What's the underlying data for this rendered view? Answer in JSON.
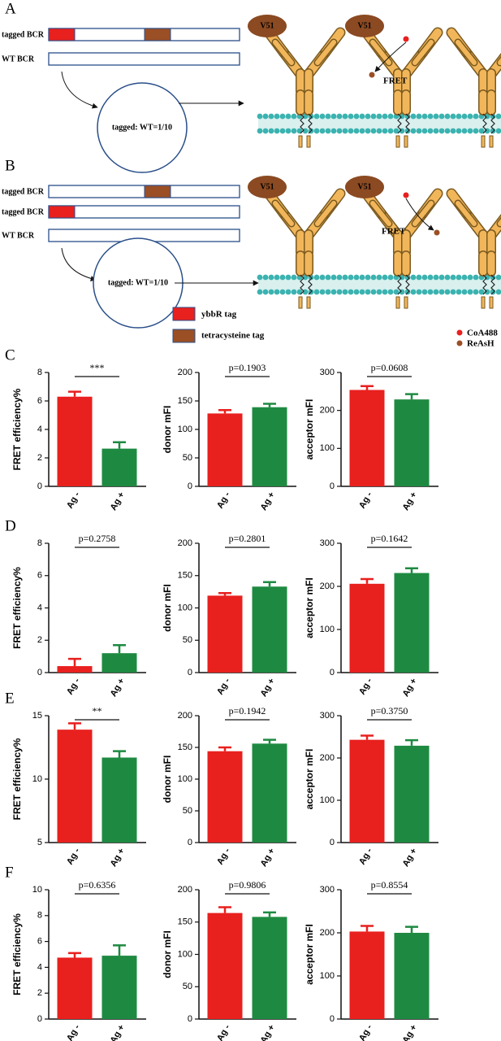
{
  "diagrams": {
    "A": {
      "label": "A",
      "rows": [
        "tagged BCR",
        "WT BCR"
      ],
      "ratio": "tagged: WT=1/10",
      "antibody": "V51",
      "fret": "FRET"
    },
    "B": {
      "label": "B",
      "rows": [
        "tagged BCR",
        "tagged BCR",
        "WT BCR"
      ],
      "ratio": "tagged: WT=1/10",
      "antibody": "V51",
      "fret": "FRET",
      "legend": [
        "ybbR tag",
        "tetracysteine tag"
      ],
      "dyes": [
        "CoA488",
        "ReAsH"
      ]
    }
  },
  "chart_data": [
    {
      "type": "bar",
      "panel": "C",
      "ylabel": "FRET efficiency%",
      "categories": [
        "Ag -",
        "Ag +"
      ],
      "values": [
        6.3,
        2.65
      ],
      "errors": [
        0.35,
        0.45
      ],
      "colors": [
        "#e8201e",
        "#1e8a41"
      ],
      "annotation": "***",
      "ylim": [
        0,
        8
      ],
      "yticks": [
        0,
        2,
        4,
        6,
        8
      ]
    },
    {
      "type": "bar",
      "ylabel": "donor mFI",
      "categories": [
        "Ag -",
        "Ag +"
      ],
      "values": [
        128,
        139
      ],
      "errors": [
        6,
        6
      ],
      "colors": [
        "#e8201e",
        "#1e8a41"
      ],
      "annotation": "p=0.1903",
      "ylim": [
        0,
        200
      ],
      "yticks": [
        0,
        50,
        100,
        150,
        200
      ]
    },
    {
      "type": "bar",
      "ylabel": "acceptor mFI",
      "categories": [
        "Ag -",
        "Ag +"
      ],
      "values": [
        254,
        229
      ],
      "errors": [
        10,
        14
      ],
      "colors": [
        "#e8201e",
        "#1e8a41"
      ],
      "annotation": "p=0.0608",
      "ylim": [
        0,
        300
      ],
      "yticks": [
        0,
        100,
        200,
        300
      ]
    },
    {
      "type": "bar",
      "panel": "D",
      "ylabel": "FRET efficiency%",
      "categories": [
        "Ag -",
        "Ag +"
      ],
      "values": [
        0.4,
        1.2
      ],
      "errors": [
        0.45,
        0.5
      ],
      "colors": [
        "#e8201e",
        "#1e8a41"
      ],
      "annotation": "p=0.2758",
      "ylim": [
        0,
        8
      ],
      "yticks": [
        0,
        2,
        4,
        6,
        8
      ]
    },
    {
      "type": "bar",
      "ylabel": "donor mFI",
      "categories": [
        "Ag -",
        "Ag +"
      ],
      "values": [
        119,
        133
      ],
      "errors": [
        4,
        7
      ],
      "colors": [
        "#e8201e",
        "#1e8a41"
      ],
      "annotation": "p=0.2801",
      "ylim": [
        0,
        200
      ],
      "yticks": [
        0,
        50,
        100,
        150,
        200
      ]
    },
    {
      "type": "bar",
      "ylabel": "acceptor mFI",
      "categories": [
        "Ag -",
        "Ag +"
      ],
      "values": [
        206,
        231
      ],
      "errors": [
        11,
        11
      ],
      "colors": [
        "#e8201e",
        "#1e8a41"
      ],
      "annotation": "p=0.1642",
      "ylim": [
        0,
        300
      ],
      "yticks": [
        0,
        100,
        200,
        300
      ]
    },
    {
      "type": "bar",
      "panel": "E",
      "ylabel": "FRET efficiency%",
      "categories": [
        "Ag -",
        "Ag +"
      ],
      "values": [
        13.9,
        11.7
      ],
      "errors": [
        0.5,
        0.5
      ],
      "colors": [
        "#e8201e",
        "#1e8a41"
      ],
      "annotation": "**",
      "ylim": [
        5,
        15
      ],
      "yticks": [
        5,
        10,
        15
      ]
    },
    {
      "type": "bar",
      "ylabel": "donor mFI",
      "categories": [
        "Ag -",
        "Ag +"
      ],
      "values": [
        144,
        156
      ],
      "errors": [
        6,
        6
      ],
      "colors": [
        "#e8201e",
        "#1e8a41"
      ],
      "annotation": "p=0.1942",
      "ylim": [
        0,
        200
      ],
      "yticks": [
        0,
        50,
        100,
        150,
        200
      ]
    },
    {
      "type": "bar",
      "ylabel": "acceptor mFI",
      "categories": [
        "Ag -",
        "Ag +"
      ],
      "values": [
        243,
        229
      ],
      "errors": [
        10,
        13
      ],
      "colors": [
        "#e8201e",
        "#1e8a41"
      ],
      "annotation": "p=0.3750",
      "ylim": [
        0,
        300
      ],
      "yticks": [
        0,
        100,
        200,
        300
      ]
    },
    {
      "type": "bar",
      "panel": "F",
      "ylabel": "FRET efficiency%",
      "categories": [
        "Ag -",
        "Ag +"
      ],
      "values": [
        4.75,
        4.9
      ],
      "errors": [
        0.35,
        0.8
      ],
      "colors": [
        "#e8201e",
        "#1e8a41"
      ],
      "annotation": "p=0.6356",
      "ylim": [
        0,
        10
      ],
      "yticks": [
        0,
        2,
        4,
        6,
        8,
        10
      ]
    },
    {
      "type": "bar",
      "ylabel": "donor mFI",
      "categories": [
        "Ag -",
        "Ag +"
      ],
      "values": [
        164,
        158
      ],
      "errors": [
        9,
        7
      ],
      "colors": [
        "#e8201e",
        "#1e8a41"
      ],
      "annotation": "p=0.9806",
      "ylim": [
        0,
        200
      ],
      "yticks": [
        0,
        50,
        100,
        150,
        200
      ]
    },
    {
      "type": "bar",
      "ylabel": "acceptor mFI",
      "categories": [
        "Ag -",
        "Ag +"
      ],
      "values": [
        203,
        200
      ],
      "errors": [
        13,
        14
      ],
      "colors": [
        "#e8201e",
        "#1e8a41"
      ],
      "annotation": "p=0.8554",
      "ylim": [
        0,
        300
      ],
      "yticks": [
        0,
        100,
        200,
        300
      ]
    }
  ]
}
